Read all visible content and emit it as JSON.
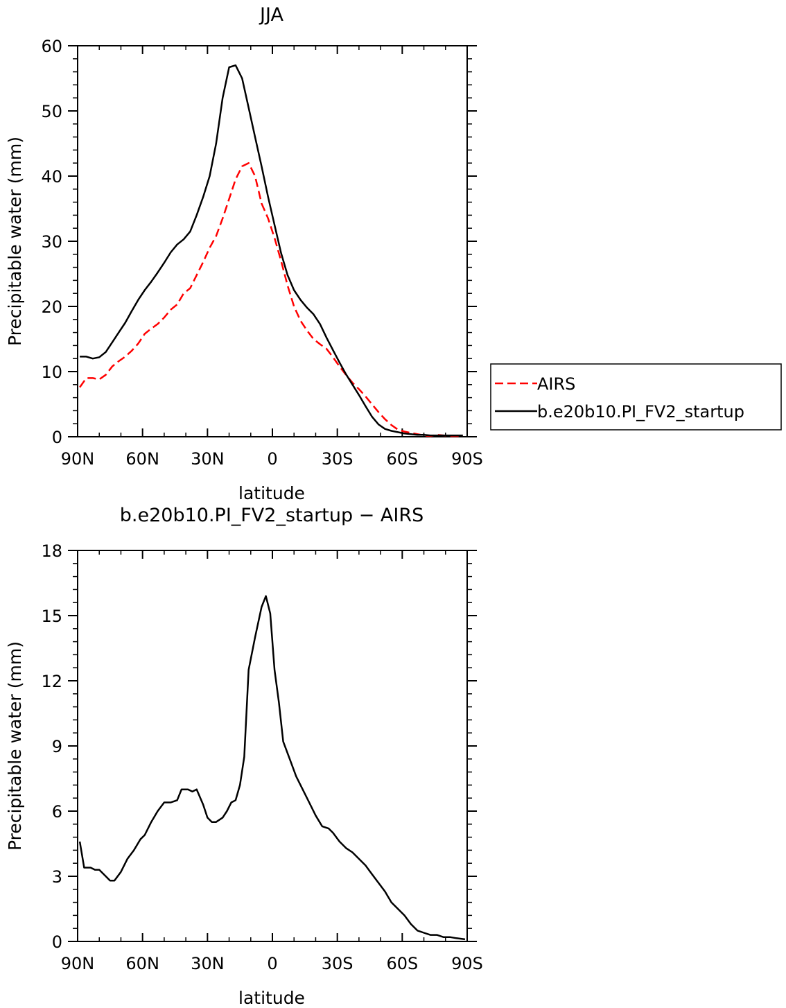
{
  "chart_data": [
    {
      "type": "line",
      "title": "JJA",
      "xlabel": "latitude",
      "ylabel": "Precipitable water (mm)",
      "xlim": [
        90,
        -90
      ],
      "ylim": [
        0,
        60
      ],
      "x_ticks": [
        {
          "value": 90,
          "label": "90N"
        },
        {
          "value": 60,
          "label": "60N"
        },
        {
          "value": 30,
          "label": "30N"
        },
        {
          "value": 0,
          "label": "0"
        },
        {
          "value": -30,
          "label": "30S"
        },
        {
          "value": -60,
          "label": "60S"
        },
        {
          "value": -90,
          "label": "90S"
        }
      ],
      "y_ticks": [
        0,
        10,
        20,
        30,
        40,
        50,
        60
      ],
      "legend": {
        "position": "right"
      },
      "series": [
        {
          "name": "AIRS",
          "color": "#ff0000",
          "dash": "dashed",
          "x": [
            89,
            86,
            83,
            80,
            77,
            74,
            71,
            68,
            65,
            62,
            59,
            56,
            53,
            50,
            47,
            44,
            41,
            38,
            35,
            32,
            29,
            26,
            23,
            20,
            17,
            14,
            11,
            8,
            5,
            2,
            -1,
            -4,
            -7,
            -10,
            -13,
            -16,
            -19,
            -22,
            -25,
            -28,
            -31,
            -34,
            -37,
            -40,
            -43,
            -46,
            -49,
            -52,
            -55,
            -58,
            -61,
            -64,
            -67,
            -70,
            -73,
            -76,
            -79,
            -82,
            -85,
            -88
          ],
          "y": [
            7.6,
            9.0,
            9.0,
            8.8,
            9.5,
            10.8,
            11.6,
            12.3,
            13.2,
            14.3,
            15.8,
            16.6,
            17.3,
            18.3,
            19.5,
            20.3,
            22.0,
            22.8,
            24.8,
            26.8,
            29.0,
            30.8,
            33.5,
            36.5,
            39.5,
            41.5,
            42.0,
            40.0,
            35.8,
            33.5,
            30.5,
            27.0,
            23.2,
            20.0,
            17.8,
            16.3,
            15.0,
            14.2,
            13.5,
            12.2,
            10.8,
            9.5,
            8.3,
            7.3,
            6.2,
            5.0,
            3.8,
            2.7,
            1.8,
            1.1,
            0.8,
            0.6,
            0.4,
            0.2,
            0.1,
            0.3,
            0.2,
            0.1,
            0.1,
            0.1
          ]
        },
        {
          "name": "b.e20b10.PI_FV2_startup",
          "color": "#000000",
          "dash": "solid",
          "x": [
            89,
            86,
            83,
            80,
            77,
            74,
            71,
            68,
            65,
            62,
            59,
            56,
            53,
            50,
            47,
            44,
            41,
            38,
            35,
            32,
            29,
            26,
            23,
            20,
            17,
            14,
            11,
            8,
            5,
            2,
            -1,
            -4,
            -7,
            -10,
            -13,
            -16,
            -19,
            -22,
            -25,
            -28,
            -31,
            -34,
            -37,
            -40,
            -43,
            -46,
            -49,
            -52,
            -55,
            -58,
            -61,
            -64,
            -67,
            -70,
            -73,
            -76,
            -79,
            -82,
            -85,
            -88
          ],
          "y": [
            12.3,
            12.3,
            12.0,
            12.2,
            13.0,
            14.5,
            16.0,
            17.5,
            19.3,
            21.0,
            22.5,
            23.8,
            25.2,
            26.7,
            28.3,
            29.5,
            30.3,
            31.5,
            34.0,
            36.8,
            40.0,
            45.0,
            52.0,
            56.7,
            57.0,
            55.0,
            50.5,
            46.0,
            41.5,
            36.8,
            32.5,
            28.2,
            24.8,
            22.5,
            21.0,
            19.8,
            18.8,
            17.3,
            15.2,
            13.3,
            11.4,
            9.6,
            8.0,
            6.4,
            4.7,
            3.1,
            1.9,
            1.2,
            0.9,
            0.7,
            0.5,
            0.4,
            0.3,
            0.3,
            0.2,
            0.2,
            0.2,
            0.2,
            0.2,
            0.2
          ]
        }
      ]
    },
    {
      "type": "line",
      "title": "b.e20b10.PI_FV2_startup − AIRS",
      "xlabel": "latitude",
      "ylabel": "Precipitable water (mm)",
      "xlim": [
        90,
        -90
      ],
      "ylim": [
        0,
        18
      ],
      "x_ticks": [
        {
          "value": 90,
          "label": "90N"
        },
        {
          "value": 60,
          "label": "60N"
        },
        {
          "value": 30,
          "label": "30N"
        },
        {
          "value": 0,
          "label": "0"
        },
        {
          "value": -30,
          "label": "30S"
        },
        {
          "value": -60,
          "label": "60S"
        },
        {
          "value": -90,
          "label": "90S"
        }
      ],
      "y_ticks": [
        0,
        3,
        6,
        9,
        12,
        15,
        18
      ],
      "series": [
        {
          "color": "#000000",
          "dash": "solid",
          "x": [
            89,
            87,
            84,
            82,
            80,
            77,
            75,
            73,
            70,
            67,
            64,
            61,
            59,
            56,
            53,
            50,
            47,
            44,
            42,
            39,
            37,
            35,
            32,
            30,
            28,
            26,
            23,
            21,
            19,
            17,
            15,
            13,
            11,
            8,
            5,
            3,
            1,
            -1,
            -3,
            -5,
            -8,
            -11,
            -14,
            -17,
            -20,
            -23,
            -26,
            -28,
            -31,
            -34,
            -37,
            -40,
            -43,
            -46,
            -49,
            -52,
            -55,
            -58,
            -61,
            -64,
            -67,
            -70,
            -73,
            -76,
            -79,
            -82,
            -85,
            -89
          ],
          "y": [
            4.6,
            3.4,
            3.4,
            3.3,
            3.3,
            3.0,
            2.8,
            2.8,
            3.2,
            3.8,
            4.2,
            4.7,
            4.9,
            5.5,
            6.0,
            6.4,
            6.4,
            6.5,
            7.0,
            7.0,
            6.9,
            7.0,
            6.3,
            5.7,
            5.5,
            5.5,
            5.7,
            6.0,
            6.4,
            6.5,
            7.2,
            8.5,
            12.5,
            14.0,
            15.4,
            15.9,
            15.1,
            12.5,
            11.0,
            9.2,
            8.4,
            7.6,
            7.0,
            6.4,
            5.8,
            5.3,
            5.2,
            5.0,
            4.6,
            4.3,
            4.1,
            3.8,
            3.5,
            3.1,
            2.7,
            2.3,
            1.8,
            1.5,
            1.2,
            0.8,
            0.5,
            0.4,
            0.3,
            0.3,
            0.2,
            0.2,
            0.15,
            0.1
          ]
        }
      ]
    }
  ]
}
